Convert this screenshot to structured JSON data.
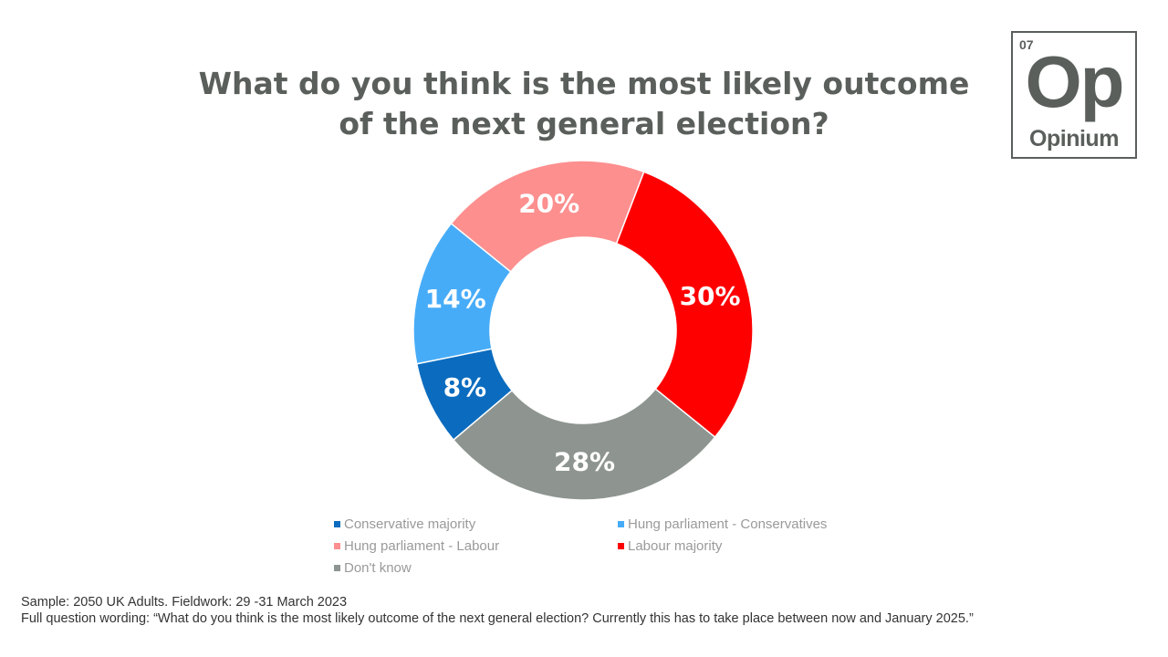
{
  "title_line1": "What do you think is the most likely outcome",
  "title_line2": "of the next general election?",
  "logo": {
    "number": "07",
    "symbol": "Op",
    "name": "Opinium"
  },
  "chart_data": {
    "type": "pie",
    "donut": true,
    "title": "What do you think is the most likely outcome of the next general election?",
    "categories": [
      "Conservative majority",
      "Hung parliament - Conservatives",
      "Hung parliament - Labour",
      "Labour majority",
      "Don't know"
    ],
    "values": [
      8,
      14,
      20,
      30,
      28
    ],
    "labels": [
      "8%",
      "14%",
      "20%",
      "30%",
      "28%"
    ],
    "colors": [
      "#0b6cbf",
      "#47acf8",
      "#fd8f8f",
      "#ff0000",
      "#8e9590"
    ],
    "legend_position": "bottom"
  },
  "footer": {
    "sample": "Sample: 2050 UK Adults. Fieldwork: 29 -31 March 2023",
    "question": "Full question wording: “What do you think is the most likely outcome of the next general election? Currently this has to take place between now and January 2025.”"
  }
}
